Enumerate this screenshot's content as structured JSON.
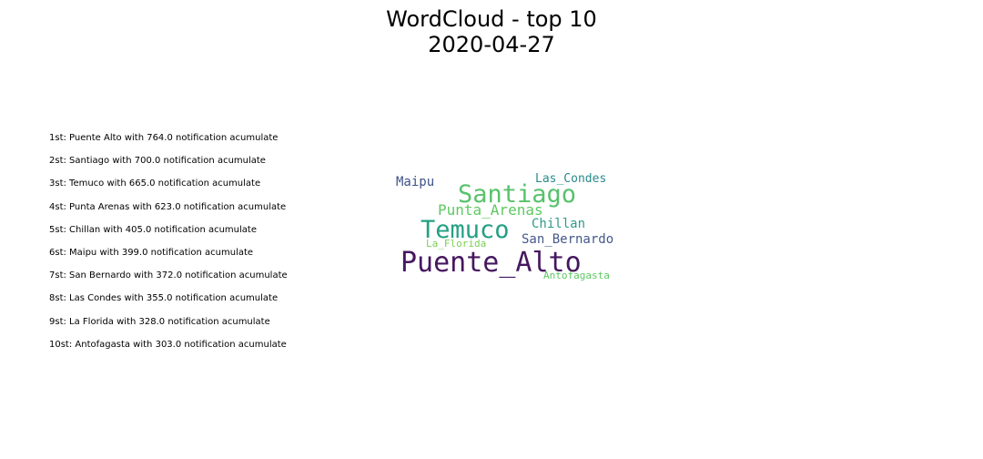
{
  "title": {
    "line1": "WordCloud - top 10",
    "line2": "2020-04-27"
  },
  "ranking": [
    "1st: Puente Alto with 764.0 notification acumulate",
    "2st: Santiago with 700.0 notification acumulate",
    "3st: Temuco with 665.0 notification acumulate",
    "4st: Punta Arenas with 623.0 notification acumulate",
    "5st: Chillan with 405.0 notification acumulate",
    "6st: Maipu with 399.0 notification acumulate",
    "7st: San Bernardo with 372.0 notification acumulate",
    "8st: Las Condes with 355.0 notification acumulate",
    "9st: La Florida with 328.0 notification acumulate",
    "10st: Antofagasta with 303.0 notification acumulate"
  ],
  "chart_data": {
    "type": "wordcloud",
    "title": "WordCloud - top 10\n2020-04-27",
    "words": [
      {
        "text": "Puente_Alto",
        "value": 764.0,
        "color": "#46175f"
      },
      {
        "text": "Santiago",
        "value": 700.0,
        "color": "#58c26c"
      },
      {
        "text": "Temuco",
        "value": 665.0,
        "color": "#23a083"
      },
      {
        "text": "Punta_Arenas",
        "value": 623.0,
        "color": "#5ec962"
      },
      {
        "text": "Chillan",
        "value": 405.0,
        "color": "#2f9a8a"
      },
      {
        "text": "Maipu",
        "value": 399.0,
        "color": "#3f5289"
      },
      {
        "text": "San_Bernardo",
        "value": 372.0,
        "color": "#45588b"
      },
      {
        "text": "Las_Condes",
        "value": 355.0,
        "color": "#2a8a8c"
      },
      {
        "text": "La_Florida",
        "value": 328.0,
        "color": "#7ad151"
      },
      {
        "text": "Antofagasta",
        "value": 303.0,
        "color": "#5dc863"
      }
    ]
  }
}
